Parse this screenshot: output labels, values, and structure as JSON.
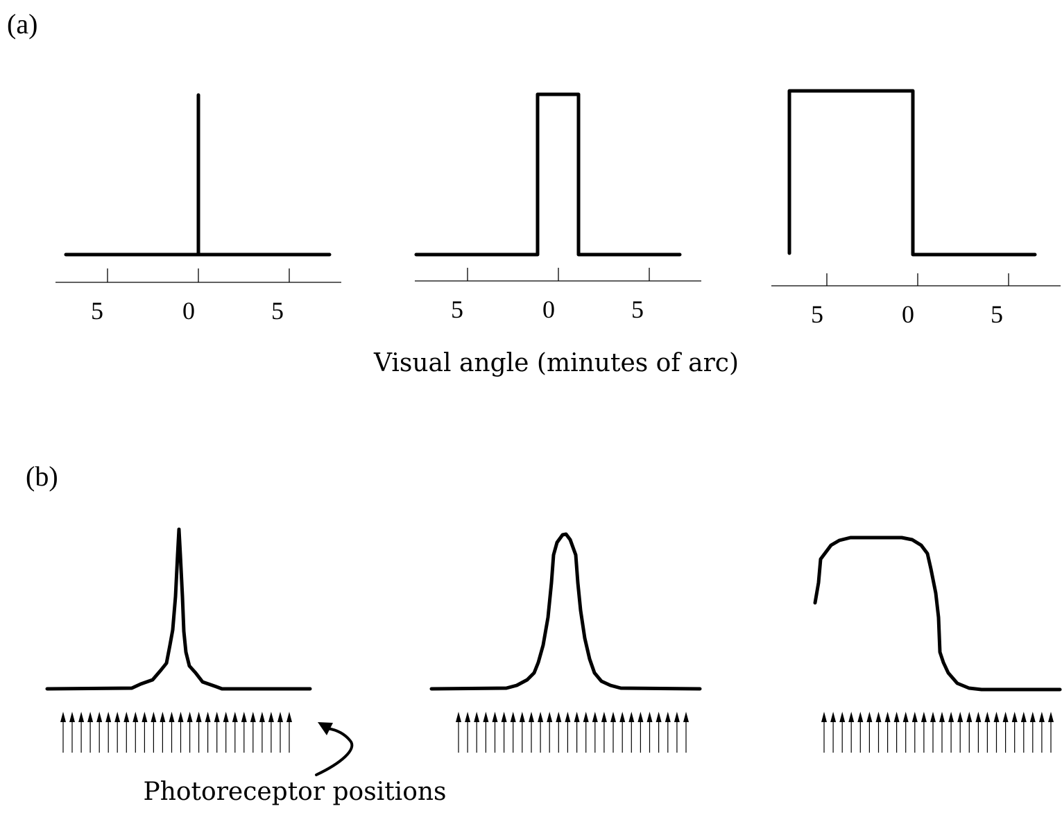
{
  "figure": {
    "panel_a_label": "(a)",
    "panel_b_label": "(b)",
    "axis_title": "Visual angle (minutes of arc)",
    "photoreceptor_label": "Photoreceptor positions",
    "tick_labels": [
      "5",
      "0",
      "5"
    ],
    "receptors_per_array": 26
  },
  "panels_a": [
    {
      "name": "line-stimulus"
    },
    {
      "name": "narrow-bar-stimulus"
    },
    {
      "name": "wide-bar-stimulus"
    }
  ],
  "panels_b": [
    {
      "name": "line-retinal-image"
    },
    {
      "name": "narrow-bar-retinal-image"
    },
    {
      "name": "wide-bar-retinal-image"
    }
  ],
  "colors": {
    "ink": "#000000",
    "background": "#ffffff"
  }
}
